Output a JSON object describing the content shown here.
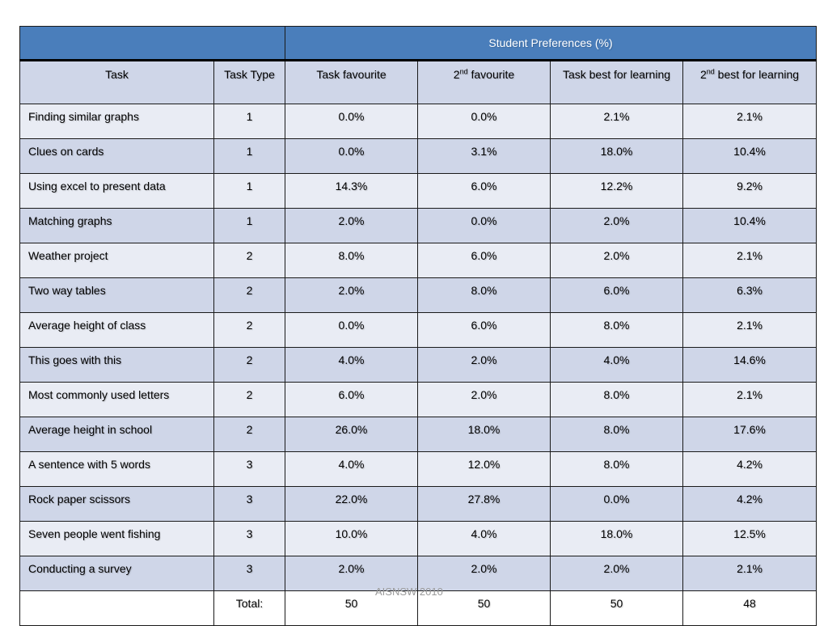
{
  "table": {
    "title": "Student Preferences (%)",
    "headers": {
      "task": "Task",
      "task_type": "Task Type",
      "fav": "Task favourite",
      "fav2_sup": "nd",
      "fav2_prefix": "2",
      "fav2_suffix": " favourite",
      "learn": "Task best for learning",
      "learn2_prefix": "2",
      "learn2_sup": "nd",
      "learn2_suffix": " best for learning"
    },
    "rows": [
      {
        "task": "Finding similar graphs",
        "type": "1",
        "fav": "0.0%",
        "fav2": "0.0%",
        "learn": "2.1%",
        "learn2": "2.1%"
      },
      {
        "task": "Clues on cards",
        "type": "1",
        "fav": "0.0%",
        "fav2": "3.1%",
        "learn": "18.0%",
        "learn2": "10.4%"
      },
      {
        "task": "Using excel to present data",
        "type": "1",
        "fav": "14.3%",
        "fav2": "6.0%",
        "learn": "12.2%",
        "learn2": "9.2%"
      },
      {
        "task": "Matching graphs",
        "type": "1",
        "fav": "2.0%",
        "fav2": "0.0%",
        "learn": "2.0%",
        "learn2": "10.4%"
      },
      {
        "task": "Weather project",
        "type": "2",
        "fav": "8.0%",
        "fav2": "6.0%",
        "learn": "2.0%",
        "learn2": "2.1%"
      },
      {
        "task": "Two way tables",
        "type": "2",
        "fav": "2.0%",
        "fav2": "8.0%",
        "learn": "6.0%",
        "learn2": "6.3%"
      },
      {
        "task": "Average height of class",
        "type": "2",
        "fav": "0.0%",
        "fav2": "6.0%",
        "learn": "8.0%",
        "learn2": "2.1%"
      },
      {
        "task": "This goes with this",
        "type": "2",
        "fav": "4.0%",
        "fav2": "2.0%",
        "learn": "4.0%",
        "learn2": "14.6%"
      },
      {
        "task": "Most commonly used letters",
        "type": "2",
        "fav": "6.0%",
        "fav2": "2.0%",
        "learn": "8.0%",
        "learn2": "2.1%"
      },
      {
        "task": "Average height in school",
        "type": "2",
        "fav": "26.0%",
        "fav2": "18.0%",
        "learn": "8.0%",
        "learn2": "17.6%"
      },
      {
        "task": "A sentence with 5 words",
        "type": "3",
        "fav": "4.0%",
        "fav2": "12.0%",
        "learn": "8.0%",
        "learn2": "4.2%"
      },
      {
        "task": "Rock paper scissors",
        "type": "3",
        "fav": "22.0%",
        "fav2": "27.8%",
        "learn": "0.0%",
        "learn2": "4.2%"
      },
      {
        "task": "Seven people went fishing",
        "type": "3",
        "fav": "10.0%",
        "fav2": "4.0%",
        "learn": "18.0%",
        "learn2": "12.5%"
      },
      {
        "task": "Conducting a survey",
        "type": "3",
        "fav": "2.0%",
        "fav2": "2.0%",
        "learn": "2.0%",
        "learn2": "2.1%"
      }
    ],
    "total": {
      "label": "Total:",
      "fav": "50",
      "fav2": "50",
      "learn": "50",
      "learn2": "48"
    }
  },
  "footer": "AISNSW 2010",
  "colors": {
    "header_blue": "#4a7ebb",
    "row_light": "#e9ecf4",
    "row_dark": "#cfd6e8"
  }
}
